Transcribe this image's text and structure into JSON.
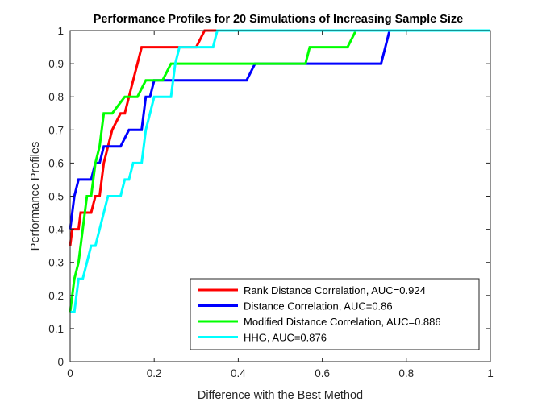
{
  "chart_data": {
    "type": "line",
    "title": "Performance Profiles for 20 Simulations of Increasing Sample Size",
    "xlabel": "Difference with the Best Method",
    "ylabel": "Performance Profiles",
    "xlim": [
      0,
      1
    ],
    "ylim": [
      0,
      1
    ],
    "xticks": [
      "0",
      "0.2",
      "0.4",
      "0.6",
      "0.8",
      "1"
    ],
    "yticks": [
      "0",
      "0.1",
      "0.2",
      "0.3",
      "0.4",
      "0.5",
      "0.6",
      "0.7",
      "0.8",
      "0.9",
      "1"
    ],
    "grid": false,
    "legend_position": "bottom-right",
    "series": [
      {
        "name": "Rank Distance Correlation, AUC=0.924",
        "color": "#ff0000",
        "points": [
          [
            0,
            0.35
          ],
          [
            0.005,
            0.4
          ],
          [
            0.02,
            0.4
          ],
          [
            0.025,
            0.45
          ],
          [
            0.05,
            0.45
          ],
          [
            0.06,
            0.5
          ],
          [
            0.07,
            0.5
          ],
          [
            0.08,
            0.6
          ],
          [
            0.1,
            0.7
          ],
          [
            0.12,
            0.75
          ],
          [
            0.13,
            0.75
          ],
          [
            0.14,
            0.8
          ],
          [
            0.15,
            0.85
          ],
          [
            0.16,
            0.9
          ],
          [
            0.17,
            0.95
          ],
          [
            0.2,
            0.95
          ],
          [
            0.25,
            0.95
          ],
          [
            0.3,
            0.95
          ],
          [
            0.32,
            1
          ],
          [
            1,
            1
          ]
        ]
      },
      {
        "name": "Distance Correlation, AUC=0.86",
        "color": "#0000ff",
        "points": [
          [
            0,
            0.4
          ],
          [
            0.01,
            0.5
          ],
          [
            0.02,
            0.55
          ],
          [
            0.05,
            0.55
          ],
          [
            0.06,
            0.6
          ],
          [
            0.07,
            0.6
          ],
          [
            0.08,
            0.65
          ],
          [
            0.12,
            0.65
          ],
          [
            0.14,
            0.7
          ],
          [
            0.17,
            0.7
          ],
          [
            0.18,
            0.8
          ],
          [
            0.19,
            0.8
          ],
          [
            0.2,
            0.85
          ],
          [
            0.42,
            0.85
          ],
          [
            0.44,
            0.9
          ],
          [
            0.63,
            0.9
          ],
          [
            0.74,
            0.9
          ],
          [
            0.76,
            1
          ],
          [
            1,
            1
          ]
        ]
      },
      {
        "name": "Modified Distance Correlation, AUC=0.886",
        "color": "#00ff00",
        "points": [
          [
            0,
            0.15
          ],
          [
            0.005,
            0.2
          ],
          [
            0.01,
            0.25
          ],
          [
            0.02,
            0.3
          ],
          [
            0.03,
            0.4
          ],
          [
            0.04,
            0.5
          ],
          [
            0.05,
            0.5
          ],
          [
            0.06,
            0.6
          ],
          [
            0.07,
            0.65
          ],
          [
            0.08,
            0.75
          ],
          [
            0.1,
            0.75
          ],
          [
            0.13,
            0.8
          ],
          [
            0.16,
            0.8
          ],
          [
            0.18,
            0.85
          ],
          [
            0.22,
            0.85
          ],
          [
            0.24,
            0.9
          ],
          [
            0.56,
            0.9
          ],
          [
            0.57,
            0.95
          ],
          [
            0.66,
            0.95
          ],
          [
            0.68,
            1
          ],
          [
            1,
            1
          ]
        ]
      },
      {
        "name": "HHG, AUC=0.876",
        "color": "#00ffff",
        "points": [
          [
            0,
            0.15
          ],
          [
            0.01,
            0.15
          ],
          [
            0.02,
            0.25
          ],
          [
            0.03,
            0.25
          ],
          [
            0.05,
            0.35
          ],
          [
            0.06,
            0.35
          ],
          [
            0.08,
            0.45
          ],
          [
            0.09,
            0.5
          ],
          [
            0.12,
            0.5
          ],
          [
            0.13,
            0.55
          ],
          [
            0.14,
            0.55
          ],
          [
            0.15,
            0.6
          ],
          [
            0.17,
            0.6
          ],
          [
            0.18,
            0.7
          ],
          [
            0.19,
            0.75
          ],
          [
            0.2,
            0.8
          ],
          [
            0.24,
            0.8
          ],
          [
            0.25,
            0.9
          ],
          [
            0.26,
            0.95
          ],
          [
            0.34,
            0.95
          ],
          [
            0.35,
            1
          ],
          [
            1,
            1
          ]
        ]
      }
    ]
  }
}
